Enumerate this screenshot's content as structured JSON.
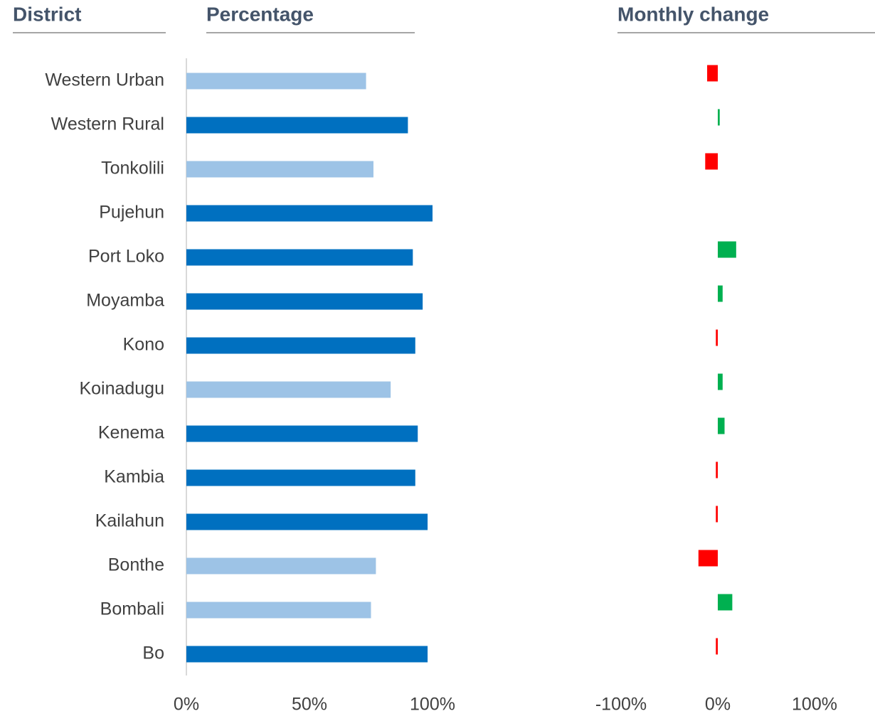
{
  "chart_data": [
    {
      "type": "bar",
      "orientation": "horizontal",
      "categories_header": "District",
      "title": "Percentage",
      "categories": [
        "Western Urban",
        "Western Rural",
        "Tonkolili",
        "Pujehun",
        "Port Loko",
        "Moyamba",
        "Kono",
        "Koinadugu",
        "Kenema",
        "Kambia",
        "Kailahun",
        "Bonthe",
        "Bombali",
        "Bo"
      ],
      "series": [
        {
          "values": [
            73,
            90,
            76,
            100,
            92,
            96,
            93,
            83,
            94,
            93,
            98,
            77,
            75,
            98
          ],
          "colors": [
            "#9dc3e6",
            "#0070c0",
            "#9dc3e6",
            "#0070c0",
            "#0070c0",
            "#0070c0",
            "#0070c0",
            "#9dc3e6",
            "#0070c0",
            "#0070c0",
            "#0070c0",
            "#9dc3e6",
            "#9dc3e6",
            "#0070c0"
          ]
        }
      ],
      "xlim": [
        0,
        100
      ],
      "xticks": [
        {
          "value": 0,
          "label": "0%"
        },
        {
          "value": 50,
          "label": "50%"
        },
        {
          "value": 100,
          "label": "100%"
        }
      ]
    },
    {
      "type": "bar",
      "orientation": "horizontal",
      "title": "Monthly change",
      "series": [
        {
          "values": [
            -11,
            2,
            -13,
            null,
            19,
            5,
            -2,
            5,
            7,
            -2,
            -2,
            -20,
            15,
            -2
          ],
          "colors": [
            "#ff0000",
            "#00b050",
            "#ff0000",
            null,
            "#00b050",
            "#00b050",
            "#ff0000",
            "#00b050",
            "#00b050",
            "#ff0000",
            "#ff0000",
            "#ff0000",
            "#00b050",
            "#ff0000"
          ]
        }
      ],
      "xlim": [
        -100,
        100
      ],
      "xticks": [
        {
          "value": -100,
          "label": "-100%"
        },
        {
          "value": 0,
          "label": "0%"
        },
        {
          "value": 100,
          "label": "100%"
        }
      ]
    }
  ]
}
